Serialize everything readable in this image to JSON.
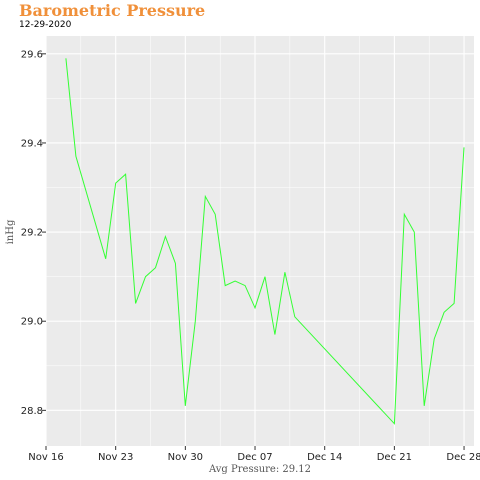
{
  "chart_data": {
    "type": "line",
    "title": "Barometric Pressure",
    "subtitle": "12-29-2020",
    "xlabel": "Avg Pressure: 29.12",
    "ylabel": "inHg",
    "ylim": [
      28.72,
      29.64
    ],
    "xlim": [
      "2020-11-16",
      "2020-12-29"
    ],
    "x_ticks": [
      {
        "date": "2020-11-16",
        "label": "Nov 16"
      },
      {
        "date": "2020-11-23",
        "label": "Nov 23"
      },
      {
        "date": "2020-11-30",
        "label": "Nov 30"
      },
      {
        "date": "2020-12-07",
        "label": "Dec 07"
      },
      {
        "date": "2020-12-14",
        "label": "Dec 14"
      },
      {
        "date": "2020-12-21",
        "label": "Dec 21"
      },
      {
        "date": "2020-12-28",
        "label": "Dec 28"
      }
    ],
    "y_ticks": [
      {
        "value": 28.8,
        "label": "28.8"
      },
      {
        "value": 29.0,
        "label": "29.0"
      },
      {
        "value": 29.2,
        "label": "29.2"
      },
      {
        "value": 29.4,
        "label": "29.4"
      },
      {
        "value": 29.6,
        "label": "29.6"
      }
    ],
    "grid": true,
    "line_color": "#33ff33",
    "panel_color": "#ebebeb",
    "grid_color": "#ffffff",
    "series": [
      {
        "values": [
          {
            "date": "2020-11-18",
            "value": 29.59
          },
          {
            "date": "2020-11-19",
            "value": 29.37
          },
          {
            "date": "2020-11-22",
            "value": 29.14
          },
          {
            "date": "2020-11-23",
            "value": 29.31
          },
          {
            "date": "2020-11-24",
            "value": 29.33
          },
          {
            "date": "2020-11-25",
            "value": 29.04
          },
          {
            "date": "2020-11-26",
            "value": 29.1
          },
          {
            "date": "2020-11-27",
            "value": 29.12
          },
          {
            "date": "2020-11-28",
            "value": 29.19
          },
          {
            "date": "2020-11-29",
            "value": 29.13
          },
          {
            "date": "2020-11-30",
            "value": 28.81
          },
          {
            "date": "2020-12-01",
            "value": 29.0
          },
          {
            "date": "2020-12-02",
            "value": 29.28
          },
          {
            "date": "2020-12-03",
            "value": 29.24
          },
          {
            "date": "2020-12-04",
            "value": 29.08
          },
          {
            "date": "2020-12-05",
            "value": 29.09
          },
          {
            "date": "2020-12-06",
            "value": 29.08
          },
          {
            "date": "2020-12-07",
            "value": 29.03
          },
          {
            "date": "2020-12-08",
            "value": 29.1
          },
          {
            "date": "2020-12-09",
            "value": 28.97
          },
          {
            "date": "2020-12-10",
            "value": 29.11
          },
          {
            "date": "2020-12-11",
            "value": 29.01
          },
          {
            "date": "2020-12-21",
            "value": 28.77
          },
          {
            "date": "2020-12-22",
            "value": 29.24
          },
          {
            "date": "2020-12-23",
            "value": 29.2
          },
          {
            "date": "2020-12-24",
            "value": 28.81
          },
          {
            "date": "2020-12-25",
            "value": 28.96
          },
          {
            "date": "2020-12-26",
            "value": 29.02
          },
          {
            "date": "2020-12-27",
            "value": 29.04
          },
          {
            "date": "2020-12-28",
            "value": 29.39
          }
        ]
      }
    ]
  }
}
